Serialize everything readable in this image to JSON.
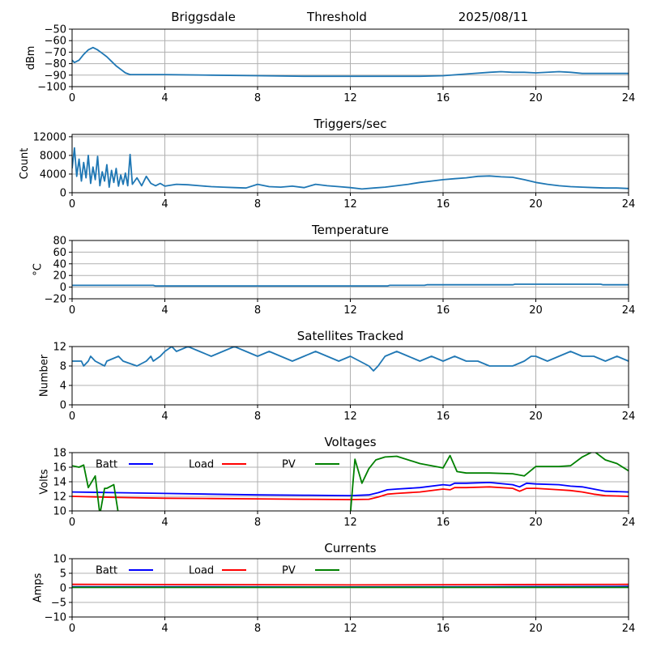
{
  "header": {
    "station": "Briggsdale",
    "mode": "Threshold",
    "date": "2025/08/11"
  },
  "colors": {
    "series": "#1f77b4",
    "batt": "#0000ff",
    "load": "#ff0000",
    "pv": "#008000",
    "grid": "#b0b0b0"
  },
  "chart_data": [
    {
      "type": "line",
      "title": "",
      "ylabel": "dBm",
      "xlim": [
        0,
        24
      ],
      "ylim": [
        -100,
        -50
      ],
      "x_ticks": [
        0,
        4,
        8,
        12,
        16,
        20,
        24
      ],
      "y_ticks": [
        -100,
        -90,
        -80,
        -70,
        -60,
        -50
      ],
      "grid": true,
      "series": [
        {
          "x": [
            0,
            0.1,
            0.3,
            0.5,
            0.7,
            0.9,
            1.1,
            1.3,
            1.5,
            1.7,
            1.9,
            2.1,
            2.3,
            2.5,
            3,
            4,
            6,
            8,
            10,
            12,
            14,
            15,
            16,
            17,
            18,
            18.5,
            19,
            19.5,
            20,
            21,
            21.5,
            22,
            23,
            24
          ],
          "y": [
            -77,
            -79,
            -77,
            -72,
            -68,
            -66,
            -68,
            -71,
            -74,
            -78,
            -82,
            -85,
            -88,
            -89.5,
            -89.5,
            -89.5,
            -90,
            -90.5,
            -91,
            -91,
            -91,
            -91,
            -90.5,
            -89,
            -87.5,
            -87,
            -87.5,
            -87.5,
            -88,
            -87,
            -87.5,
            -88.5,
            -88.5,
            -88.5
          ]
        }
      ]
    },
    {
      "type": "line",
      "title": "Triggers/sec",
      "ylabel": "Count",
      "xlim": [
        0,
        24
      ],
      "ylim": [
        0,
        12500
      ],
      "x_ticks": [
        0,
        4,
        8,
        12,
        16,
        20,
        24
      ],
      "y_ticks": [
        0,
        4000,
        8000,
        12000
      ],
      "grid": true,
      "series": [
        {
          "x": [
            0,
            0.1,
            0.2,
            0.3,
            0.4,
            0.5,
            0.6,
            0.7,
            0.8,
            0.9,
            1.0,
            1.1,
            1.2,
            1.3,
            1.4,
            1.5,
            1.6,
            1.7,
            1.8,
            1.9,
            2.0,
            2.1,
            2.2,
            2.3,
            2.4,
            2.5,
            2.6,
            2.8,
            3.0,
            3.2,
            3.4,
            3.6,
            3.8,
            4.0,
            4.5,
            5.0,
            5.5,
            6.0,
            6.5,
            7.0,
            7.5,
            8.0,
            8.5,
            9.0,
            9.5,
            10.0,
            10.5,
            11.0,
            11.5,
            12.0,
            12.5,
            13.0,
            13.5,
            14.0,
            14.5,
            15.0,
            15.5,
            16.0,
            16.5,
            17.0,
            17.5,
            18.0,
            18.5,
            19.0,
            19.5,
            20.0,
            20.5,
            21.0,
            21.5,
            22.0,
            22.5,
            23.0,
            23.5,
            24.0
          ],
          "y": [
            5200,
            9600,
            3500,
            7200,
            2500,
            6500,
            3200,
            8000,
            2000,
            5500,
            2800,
            7800,
            1500,
            4500,
            2500,
            6000,
            1200,
            4800,
            2200,
            5200,
            1400,
            3800,
            1800,
            4200,
            1500,
            8200,
            1800,
            3200,
            1500,
            3500,
            2000,
            1500,
            2000,
            1400,
            1800,
            1700,
            1500,
            1300,
            1200,
            1100,
            1000,
            1800,
            1300,
            1200,
            1400,
            1100,
            1800,
            1500,
            1300,
            1100,
            800,
            1000,
            1200,
            1500,
            1800,
            2200,
            2500,
            2800,
            3000,
            3200,
            3500,
            3600,
            3400,
            3300,
            2800,
            2200,
            1800,
            1500,
            1300,
            1200,
            1100,
            1000,
            1000,
            900
          ]
        }
      ]
    },
    {
      "type": "line",
      "title": "Temperature",
      "ylabel": "°C",
      "xlim": [
        0,
        24
      ],
      "ylim": [
        -20,
        80
      ],
      "x_ticks": [
        0,
        4,
        8,
        12,
        16,
        20,
        24
      ],
      "y_ticks": [
        -20,
        0,
        20,
        40,
        60,
        80
      ],
      "grid": true,
      "series": [
        {
          "x": [
            0,
            3.5,
            3.6,
            13.6,
            13.7,
            15.2,
            15.3,
            19,
            19.1,
            22.8,
            22.9,
            24
          ],
          "y": [
            3,
            3,
            2,
            2,
            3,
            3,
            4,
            4,
            5,
            5,
            4,
            4
          ]
        }
      ]
    },
    {
      "type": "line",
      "title": "Satellites Tracked",
      "ylabel": "Number",
      "xlim": [
        0,
        24
      ],
      "ylim": [
        0,
        12
      ],
      "x_ticks": [
        0,
        4,
        8,
        12,
        16,
        20,
        24
      ],
      "y_ticks": [
        0,
        4,
        8,
        12
      ],
      "grid": true,
      "series": [
        {
          "x": [
            0,
            0.4,
            0.5,
            0.7,
            0.8,
            1.0,
            1.4,
            1.5,
            2.0,
            2.2,
            2.8,
            3.2,
            3.4,
            3.5,
            3.8,
            4.0,
            4.3,
            4.5,
            5.0,
            5.5,
            6.0,
            6.5,
            7.0,
            7.5,
            8.0,
            8.5,
            9.0,
            9.5,
            10.0,
            10.5,
            11.0,
            11.5,
            12.0,
            12.4,
            12.8,
            13.0,
            13.2,
            13.5,
            14.0,
            14.5,
            15.0,
            15.5,
            16.0,
            16.5,
            17.0,
            17.5,
            18.0,
            18.5,
            19.0,
            19.5,
            19.8,
            20.0,
            20.5,
            21.0,
            21.5,
            22.0,
            22.5,
            23.0,
            23.5,
            24.0
          ],
          "y": [
            9,
            9,
            8,
            9,
            10,
            9,
            8,
            9,
            10,
            9,
            8,
            9,
            10,
            9,
            10,
            11,
            12,
            11,
            12,
            11,
            10,
            11,
            12,
            11,
            10,
            11,
            10,
            9,
            10,
            11,
            10,
            9,
            10,
            9,
            8,
            7,
            8,
            10,
            11,
            10,
            9,
            10,
            9,
            10,
            9,
            9,
            8,
            8,
            8,
            9,
            10,
            10,
            9,
            10,
            11,
            10,
            10,
            9,
            10,
            9
          ]
        }
      ]
    },
    {
      "type": "line",
      "title": "Voltages",
      "ylabel": "Volts",
      "xlim": [
        0,
        24
      ],
      "ylim": [
        10,
        18
      ],
      "x_ticks": [
        0,
        4,
        8,
        12,
        16,
        20,
        24
      ],
      "y_ticks": [
        10,
        12,
        14,
        16,
        18
      ],
      "grid": true,
      "legend": "top-left",
      "series": [
        {
          "name": "Batt",
          "color": "#0000ff",
          "x": [
            0,
            2,
            4,
            6,
            8,
            10,
            12,
            12.8,
            13.2,
            13.6,
            14,
            15,
            16,
            16.3,
            16.5,
            17,
            18,
            19,
            19.3,
            19.6,
            20,
            21,
            21.5,
            22,
            22.5,
            23,
            24
          ],
          "y": [
            12.6,
            12.5,
            12.4,
            12.3,
            12.2,
            12.15,
            12.1,
            12.2,
            12.5,
            12.9,
            13.0,
            13.2,
            13.6,
            13.5,
            13.8,
            13.8,
            13.9,
            13.6,
            13.3,
            13.8,
            13.7,
            13.6,
            13.4,
            13.3,
            13.0,
            12.7,
            12.6
          ]
        },
        {
          "name": "Load",
          "color": "#ff0000",
          "x": [
            0,
            2,
            4,
            6,
            8,
            10,
            12,
            12.8,
            13.2,
            13.6,
            14,
            15,
            16,
            16.3,
            16.5,
            17,
            18,
            19,
            19.3,
            19.6,
            20,
            21,
            21.5,
            22,
            22.5,
            23,
            24
          ],
          "y": [
            12.0,
            11.85,
            11.75,
            11.7,
            11.65,
            11.6,
            11.55,
            11.6,
            11.9,
            12.3,
            12.4,
            12.6,
            13.0,
            12.9,
            13.2,
            13.2,
            13.3,
            13.1,
            12.7,
            13.1,
            13.1,
            12.9,
            12.8,
            12.6,
            12.3,
            12.1,
            12.0
          ]
        },
        {
          "name": "PV",
          "color": "#008000",
          "x": [
            0,
            0.3,
            0.5,
            0.7,
            1.0,
            1.2,
            1.4,
            1.5,
            1.8,
            2.0,
            2.1,
            12.0,
            12.2,
            12.5,
            12.8,
            13.1,
            13.5,
            14.0,
            15.0,
            16.0,
            16.3,
            16.6,
            17.0,
            18.0,
            19.0,
            19.5,
            20.0,
            21.0,
            21.5,
            22.0,
            22.5,
            23.0,
            23.5,
            24.0
          ],
          "y": [
            16.2,
            16.0,
            16.3,
            13.2,
            14.8,
            9.5,
            13.1,
            13.1,
            13.6,
            9.5,
            9.5,
            9.5,
            17.1,
            13.8,
            15.8,
            17.0,
            17.4,
            17.5,
            16.5,
            15.9,
            17.6,
            15.4,
            15.2,
            15.2,
            15.1,
            14.8,
            16.1,
            16.1,
            16.2,
            17.4,
            18.2,
            17.0,
            16.5,
            15.5
          ]
        }
      ]
    },
    {
      "type": "line",
      "title": "Currents",
      "ylabel": "Amps",
      "xlim": [
        0,
        24
      ],
      "ylim": [
        -10,
        10
      ],
      "x_ticks": [
        0,
        4,
        8,
        12,
        16,
        20,
        24
      ],
      "y_ticks": [
        -10,
        -5,
        0,
        5,
        10
      ],
      "grid": true,
      "legend": "top-left",
      "series": [
        {
          "name": "Batt",
          "color": "#0000ff",
          "x": [
            0,
            6,
            12,
            18,
            24
          ],
          "y": [
            0.4,
            0.35,
            0.3,
            0.4,
            0.5
          ]
        },
        {
          "name": "Load",
          "color": "#ff0000",
          "x": [
            0,
            6,
            12,
            18,
            24
          ],
          "y": [
            1.2,
            1.1,
            1.0,
            1.1,
            1.2
          ]
        },
        {
          "name": "PV",
          "color": "#008000",
          "x": [
            0,
            6,
            12,
            18,
            24
          ],
          "y": [
            0.2,
            0.2,
            0.2,
            0.2,
            0.2
          ]
        }
      ]
    }
  ]
}
